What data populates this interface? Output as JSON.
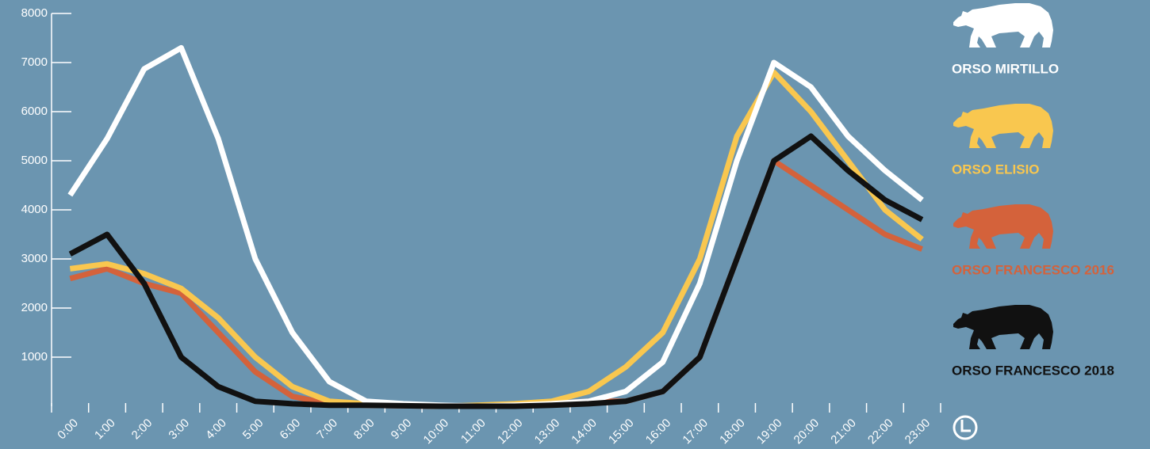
{
  "chart_data": {
    "type": "line",
    "categories": [
      "0:00",
      "1:00",
      "2:00",
      "3:00",
      "4:00",
      "5:00",
      "6:00",
      "7:00",
      "8:00",
      "9:00",
      "10:00",
      "11:00",
      "12:00",
      "13:00",
      "14:00",
      "15:00",
      "16:00",
      "17:00",
      "18:00",
      "19:00",
      "20:00",
      "21:00",
      "22:00",
      "23:00"
    ],
    "ylim": [
      0,
      8000
    ],
    "yticks": [
      1000,
      2000,
      3000,
      4000,
      5000,
      6000,
      7000,
      8000
    ],
    "series": [
      {
        "name": "ORSO MIRTILLO",
        "color": "#ffffff",
        "values": [
          4300,
          5450,
          6870,
          7300,
          5450,
          3000,
          1500,
          500,
          100,
          50,
          20,
          0,
          20,
          50,
          100,
          300,
          900,
          2500,
          5000,
          7000,
          6500,
          5500,
          4800,
          4200
        ]
      },
      {
        "name": "ORSO ELISIO",
        "color": "#f9c74f",
        "values": [
          2800,
          2900,
          2700,
          2400,
          1800,
          1000,
          400,
          100,
          50,
          20,
          0,
          20,
          50,
          100,
          300,
          800,
          1500,
          3000,
          5500,
          6800,
          6000,
          5000,
          4000,
          3400
        ]
      },
      {
        "name": "ORSO FRANCESCO 2016",
        "color": "#d4623b",
        "values": [
          2600,
          2800,
          2500,
          2300,
          1500,
          700,
          200,
          50,
          20,
          10,
          0,
          0,
          20,
          50,
          100,
          100,
          300,
          1000,
          3000,
          5000,
          4500,
          4000,
          3500,
          3200
        ]
      },
      {
        "name": "ORSO FRANCESCO 2018",
        "color": "#111111",
        "values": [
          3100,
          3500,
          2500,
          1000,
          400,
          100,
          50,
          20,
          20,
          10,
          0,
          0,
          0,
          20,
          50,
          100,
          300,
          1000,
          3000,
          5000,
          5500,
          4800,
          4200,
          3800
        ]
      }
    ]
  }
}
